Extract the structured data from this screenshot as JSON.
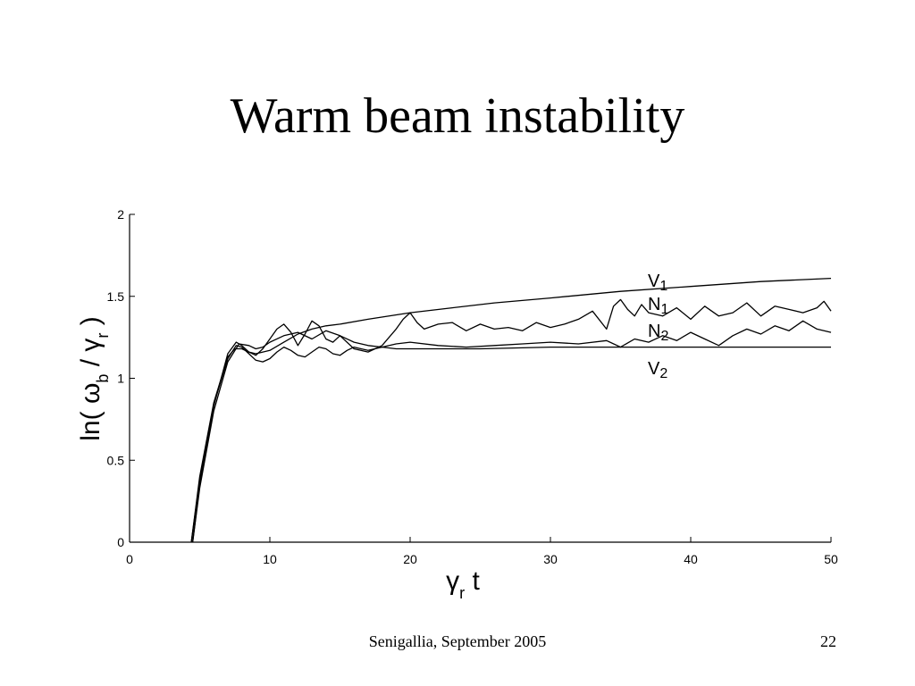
{
  "slide": {
    "title": "Warm beam instability",
    "footer": "Senigallia, September 2005",
    "page_number": "22"
  },
  "chart_data": {
    "type": "line",
    "title": "",
    "xlabel": {
      "main": "γ",
      "sub": "r",
      "tail": " t"
    },
    "ylabel": {
      "main": "ln( ω",
      "sub1": "b",
      "mid": " / γ",
      "sub2": "r",
      "tail": " )"
    },
    "xlim": [
      0,
      50
    ],
    "ylim": [
      0,
      2
    ],
    "xticks": [
      0,
      10,
      20,
      30,
      40,
      50
    ],
    "xtick_labels": [
      "0",
      "10",
      "20",
      "30",
      "40",
      "50"
    ],
    "yticks": [
      0,
      0.5,
      1,
      1.5,
      2
    ],
    "ytick_labels": [
      "0",
      "0.5",
      "1",
      "1.5",
      "2"
    ],
    "grid": false,
    "series": [
      {
        "name": "V1",
        "label_main": "V",
        "label_sub": "1",
        "x": [
          4.4,
          5,
          6,
          7,
          7.5,
          8,
          8.5,
          9,
          10,
          11,
          12,
          13,
          14,
          15,
          17,
          20,
          23,
          26,
          30,
          35,
          40,
          45,
          50
        ],
        "y": [
          0,
          0.4,
          0.85,
          1.13,
          1.18,
          1.18,
          1.16,
          1.15,
          1.17,
          1.22,
          1.27,
          1.3,
          1.32,
          1.33,
          1.36,
          1.4,
          1.43,
          1.46,
          1.49,
          1.53,
          1.56,
          1.59,
          1.61
        ]
      },
      {
        "name": "N1",
        "label_main": "N",
        "label_sub": "1",
        "x": [
          4.5,
          5,
          6,
          7,
          7.6,
          8,
          8.5,
          9,
          9.5,
          10,
          10.5,
          11,
          11.5,
          12,
          12.5,
          13,
          13.5,
          14,
          14.5,
          15,
          16,
          17,
          18,
          19,
          19.5,
          20,
          20.5,
          21,
          22,
          23,
          24,
          25,
          26,
          27,
          28,
          29,
          30,
          31,
          32,
          33,
          34,
          34.5,
          35,
          35.5,
          36,
          36.5,
          37,
          38,
          39,
          40,
          41,
          42,
          43,
          44,
          45,
          46,
          47,
          48,
          49,
          49.5,
          50
        ],
        "y": [
          0,
          0.35,
          0.83,
          1.15,
          1.22,
          1.2,
          1.16,
          1.14,
          1.18,
          1.24,
          1.3,
          1.33,
          1.28,
          1.2,
          1.27,
          1.35,
          1.32,
          1.24,
          1.22,
          1.26,
          1.18,
          1.16,
          1.2,
          1.3,
          1.36,
          1.4,
          1.34,
          1.3,
          1.33,
          1.34,
          1.29,
          1.33,
          1.3,
          1.31,
          1.29,
          1.34,
          1.31,
          1.33,
          1.36,
          1.41,
          1.3,
          1.44,
          1.48,
          1.42,
          1.38,
          1.45,
          1.4,
          1.38,
          1.43,
          1.36,
          1.44,
          1.38,
          1.4,
          1.46,
          1.38,
          1.44,
          1.42,
          1.4,
          1.43,
          1.47,
          1.41
        ]
      },
      {
        "name": "N2",
        "label_main": "N",
        "label_sub": "2",
        "x": [
          4.5,
          5,
          6,
          7,
          7.8,
          8.5,
          9,
          9.5,
          10,
          11,
          12,
          13,
          14,
          15,
          16,
          17,
          18,
          19,
          20,
          22,
          24,
          26,
          28,
          30,
          32,
          34,
          35,
          36,
          37,
          38,
          39,
          40,
          41,
          42,
          43,
          44,
          45,
          46,
          47,
          48,
          49,
          50
        ],
        "y": [
          0,
          0.33,
          0.8,
          1.1,
          1.21,
          1.2,
          1.18,
          1.19,
          1.22,
          1.26,
          1.28,
          1.24,
          1.29,
          1.26,
          1.22,
          1.2,
          1.19,
          1.21,
          1.22,
          1.2,
          1.19,
          1.2,
          1.21,
          1.22,
          1.21,
          1.23,
          1.19,
          1.24,
          1.22,
          1.26,
          1.23,
          1.28,
          1.24,
          1.2,
          1.26,
          1.3,
          1.27,
          1.32,
          1.29,
          1.35,
          1.3,
          1.28
        ]
      },
      {
        "name": "V2",
        "label_main": "V",
        "label_sub": "2",
        "x": [
          4.4,
          5,
          6,
          7,
          7.6,
          8,
          8.5,
          9,
          9.5,
          10,
          10.5,
          11,
          11.5,
          12,
          12.5,
          13,
          13.5,
          14,
          14.5,
          15,
          15.5,
          16,
          16.5,
          17,
          18,
          19,
          20,
          22,
          25,
          30,
          40,
          50
        ],
        "y": [
          0,
          0.38,
          0.84,
          1.12,
          1.2,
          1.19,
          1.15,
          1.11,
          1.1,
          1.12,
          1.16,
          1.19,
          1.17,
          1.14,
          1.13,
          1.16,
          1.19,
          1.18,
          1.15,
          1.14,
          1.17,
          1.19,
          1.18,
          1.17,
          1.19,
          1.18,
          1.18,
          1.18,
          1.18,
          1.19,
          1.19,
          1.19
        ]
      }
    ]
  }
}
